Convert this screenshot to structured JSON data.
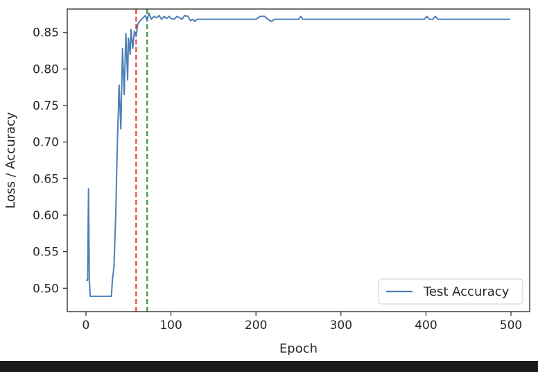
{
  "chart_data": {
    "type": "line",
    "title": "",
    "xlabel": "Epoch",
    "ylabel": "Loss / Accuracy",
    "xlim": [
      -22,
      522
    ],
    "ylim": [
      0.468,
      0.882
    ],
    "xticks": [
      0,
      100,
      200,
      300,
      400,
      500
    ],
    "yticks": [
      0.5,
      0.55,
      0.6,
      0.65,
      0.7,
      0.75,
      0.8,
      0.85
    ],
    "grid": false,
    "legend_position": "lower-right",
    "series": [
      {
        "name": "Test Accuracy",
        "color": "#4c7fb7",
        "points": [
          [
            0,
            0.511
          ],
          [
            2,
            0.511
          ],
          [
            3,
            0.636
          ],
          [
            4,
            0.511
          ],
          [
            5,
            0.489
          ],
          [
            10,
            0.489
          ],
          [
            20,
            0.489
          ],
          [
            30,
            0.489
          ],
          [
            31,
            0.51
          ],
          [
            33,
            0.53
          ],
          [
            35,
            0.6
          ],
          [
            37,
            0.7
          ],
          [
            39,
            0.778
          ],
          [
            41,
            0.718
          ],
          [
            42,
            0.773
          ],
          [
            43,
            0.828
          ],
          [
            45,
            0.765
          ],
          [
            46,
            0.81
          ],
          [
            47,
            0.848
          ],
          [
            49,
            0.785
          ],
          [
            50,
            0.842
          ],
          [
            52,
            0.82
          ],
          [
            53,
            0.854
          ],
          [
            55,
            0.828
          ],
          [
            57,
            0.852
          ],
          [
            59,
            0.845
          ],
          [
            61,
            0.862
          ],
          [
            64,
            0.866
          ],
          [
            67,
            0.87
          ],
          [
            70,
            0.873
          ],
          [
            72,
            0.866
          ],
          [
            74,
            0.876
          ],
          [
            77,
            0.868
          ],
          [
            80,
            0.872
          ],
          [
            83,
            0.87
          ],
          [
            86,
            0.873
          ],
          [
            89,
            0.868
          ],
          [
            92,
            0.872
          ],
          [
            95,
            0.869
          ],
          [
            98,
            0.872
          ],
          [
            100,
            0.869
          ],
          [
            104,
            0.868
          ],
          [
            107,
            0.872
          ],
          [
            110,
            0.87
          ],
          [
            113,
            0.868
          ],
          [
            116,
            0.873
          ],
          [
            120,
            0.872
          ],
          [
            123,
            0.866
          ],
          [
            126,
            0.868
          ],
          [
            128,
            0.865
          ],
          [
            131,
            0.868
          ],
          [
            140,
            0.868
          ],
          [
            150,
            0.868
          ],
          [
            160,
            0.868
          ],
          [
            170,
            0.868
          ],
          [
            180,
            0.868
          ],
          [
            190,
            0.868
          ],
          [
            200,
            0.868
          ],
          [
            205,
            0.872
          ],
          [
            210,
            0.872
          ],
          [
            214,
            0.868
          ],
          [
            218,
            0.865
          ],
          [
            222,
            0.868
          ],
          [
            230,
            0.868
          ],
          [
            240,
            0.868
          ],
          [
            250,
            0.868
          ],
          [
            253,
            0.872
          ],
          [
            255,
            0.868
          ],
          [
            260,
            0.868
          ],
          [
            280,
            0.868
          ],
          [
            300,
            0.868
          ],
          [
            320,
            0.868
          ],
          [
            340,
            0.868
          ],
          [
            360,
            0.868
          ],
          [
            380,
            0.868
          ],
          [
            398,
            0.868
          ],
          [
            401,
            0.872
          ],
          [
            404,
            0.868
          ],
          [
            408,
            0.868
          ],
          [
            411,
            0.872
          ],
          [
            414,
            0.868
          ],
          [
            420,
            0.868
          ],
          [
            440,
            0.868
          ],
          [
            460,
            0.868
          ],
          [
            480,
            0.868
          ],
          [
            499,
            0.868
          ]
        ]
      }
    ],
    "vlines": [
      {
        "x": 59,
        "color": "#e0463a",
        "style": "dashed"
      },
      {
        "x": 72,
        "color": "#3a9a3a",
        "style": "dashed"
      }
    ]
  }
}
